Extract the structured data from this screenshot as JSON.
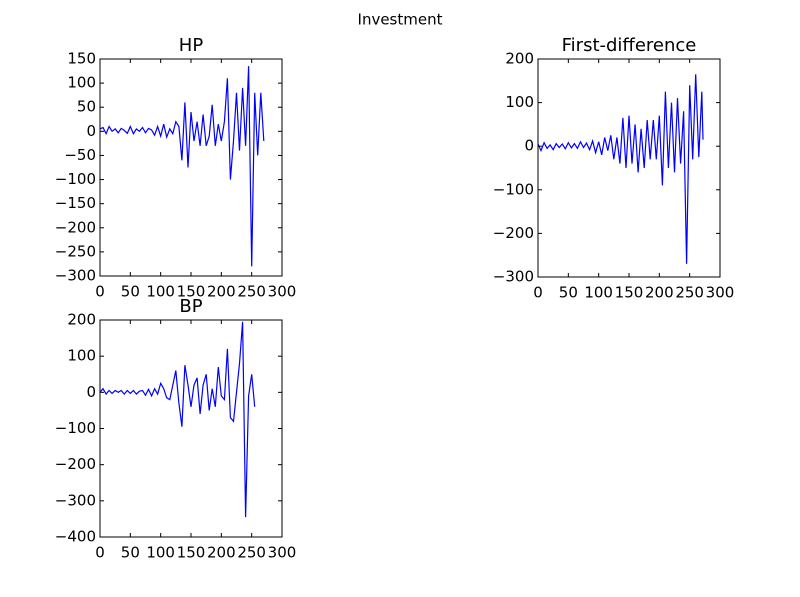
{
  "title": "Investment",
  "chart_data": [
    {
      "type": "line",
      "title": "HP",
      "color": "#0000ff",
      "x": [
        0,
        5,
        10,
        15,
        20,
        25,
        30,
        35,
        40,
        45,
        50,
        55,
        60,
        65,
        70,
        75,
        80,
        85,
        90,
        95,
        100,
        105,
        110,
        115,
        120,
        125,
        130,
        135,
        140,
        145,
        150,
        155,
        160,
        165,
        170,
        175,
        180,
        185,
        190,
        195,
        200,
        205,
        210,
        215,
        220,
        225,
        230,
        235,
        240,
        245,
        250,
        255,
        260,
        265,
        270
      ],
      "values": [
        5,
        8,
        -5,
        10,
        0,
        5,
        -3,
        6,
        2,
        -4,
        10,
        -5,
        5,
        0,
        8,
        -3,
        6,
        3,
        -8,
        10,
        -10,
        15,
        -12,
        5,
        -5,
        20,
        10,
        -60,
        60,
        -75,
        40,
        -20,
        20,
        -30,
        35,
        -30,
        -10,
        55,
        -30,
        15,
        -20,
        20,
        110,
        -100,
        -20,
        80,
        -40,
        90,
        -30,
        135,
        -280,
        80,
        -50,
        80,
        -20
      ],
      "xlim": [
        0,
        300
      ],
      "ylim": [
        -300,
        150
      ],
      "xticks": [
        0,
        50,
        100,
        150,
        200,
        250,
        300
      ],
      "yticks": [
        {
          "value": -300,
          "label": "−300"
        },
        {
          "value": -250,
          "label": "−250"
        },
        {
          "value": -200,
          "label": "−200"
        },
        {
          "value": -150,
          "label": "−150"
        },
        {
          "value": -100,
          "label": "−100"
        },
        {
          "value": -50,
          "label": "−50"
        },
        0,
        50,
        100,
        150
      ]
    },
    {
      "type": "line",
      "title": "First-difference",
      "color": "#0000ff",
      "x": [
        0,
        5,
        10,
        15,
        20,
        25,
        30,
        35,
        40,
        45,
        50,
        55,
        60,
        65,
        70,
        75,
        80,
        85,
        90,
        95,
        100,
        105,
        110,
        115,
        120,
        125,
        130,
        135,
        140,
        145,
        150,
        155,
        160,
        165,
        170,
        175,
        180,
        185,
        190,
        195,
        200,
        205,
        210,
        215,
        220,
        225,
        230,
        235,
        240,
        245,
        250,
        255,
        260,
        265,
        270,
        272
      ],
      "values": [
        5,
        -10,
        8,
        -5,
        3,
        -8,
        6,
        -3,
        5,
        -6,
        8,
        -4,
        6,
        -5,
        10,
        -3,
        7,
        -8,
        12,
        -15,
        10,
        -20,
        20,
        -10,
        25,
        -30,
        20,
        -40,
        65,
        -50,
        70,
        -40,
        50,
        -60,
        40,
        -50,
        60,
        -30,
        60,
        -30,
        70,
        -90,
        125,
        -50,
        100,
        -60,
        110,
        -40,
        80,
        -270,
        140,
        -30,
        165,
        -25,
        125,
        15
      ],
      "xlim": [
        0,
        300
      ],
      "ylim": [
        -300,
        200
      ],
      "xticks": [
        0,
        50,
        100,
        150,
        200,
        250,
        300
      ],
      "yticks": [
        {
          "value": -300,
          "label": "−300"
        },
        {
          "value": -200,
          "label": "−200"
        },
        {
          "value": -100,
          "label": "−100"
        },
        0,
        100,
        200
      ]
    },
    {
      "type": "line",
      "title": "BP",
      "color": "#0000ff",
      "x": [
        0,
        5,
        10,
        15,
        20,
        25,
        30,
        35,
        40,
        45,
        50,
        55,
        60,
        65,
        70,
        75,
        80,
        85,
        90,
        95,
        100,
        105,
        110,
        115,
        120,
        125,
        130,
        135,
        140,
        145,
        150,
        155,
        160,
        165,
        170,
        175,
        180,
        185,
        190,
        195,
        200,
        205,
        210,
        215,
        220,
        225,
        230,
        235,
        240,
        245,
        250,
        255
      ],
      "values": [
        0,
        10,
        -5,
        5,
        -3,
        5,
        0,
        5,
        -5,
        5,
        -3,
        5,
        -5,
        3,
        5,
        -8,
        8,
        -10,
        10,
        -5,
        25,
        10,
        -15,
        -20,
        20,
        60,
        -30,
        -95,
        75,
        20,
        -40,
        20,
        40,
        -60,
        20,
        50,
        -50,
        10,
        -40,
        70,
        -10,
        -20,
        120,
        -70,
        -80,
        0,
        80,
        195,
        -345,
        -10,
        50,
        -40
      ],
      "xlim": [
        0,
        300
      ],
      "ylim": [
        -400,
        200
      ],
      "xticks": [
        0,
        50,
        100,
        150,
        200,
        250,
        300
      ],
      "yticks": [
        {
          "value": -400,
          "label": "−400"
        },
        {
          "value": -300,
          "label": "−300"
        },
        {
          "value": -200,
          "label": "−200"
        },
        {
          "value": -100,
          "label": "−100"
        },
        0,
        100,
        200
      ]
    }
  ]
}
